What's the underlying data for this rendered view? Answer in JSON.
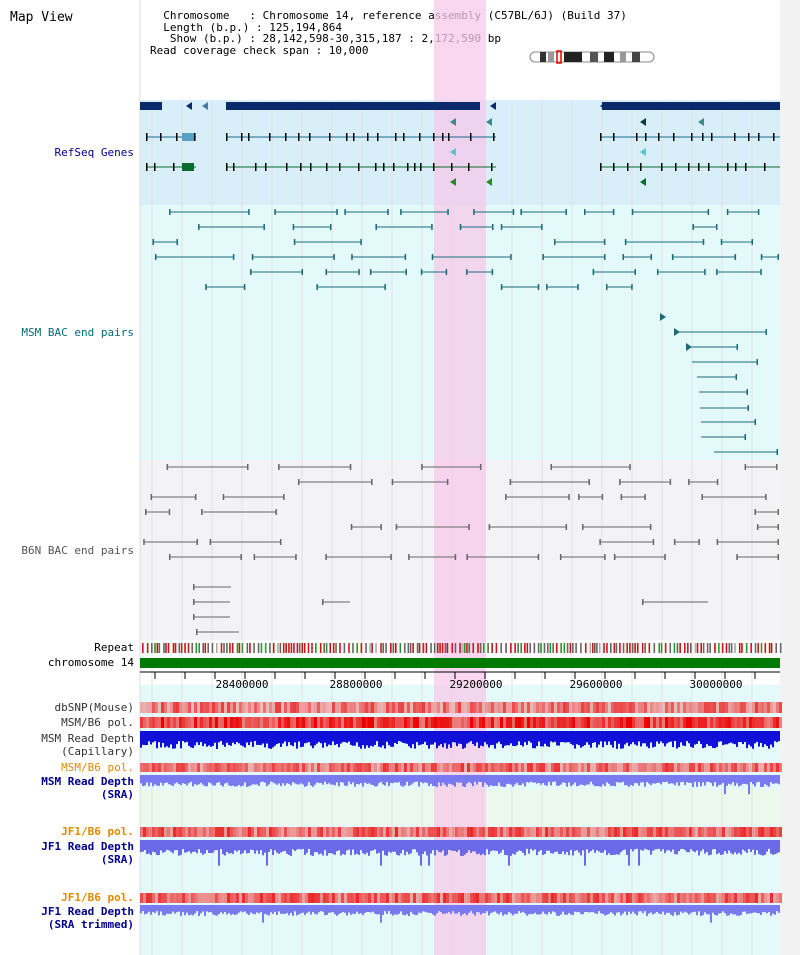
{
  "title": "Map View",
  "header": {
    "line1": "  Chromosome   : Chromosome 14, reference assembly (C57BL/6J) (Build 37)",
    "line2": "  Length (b.p.) : 125,194,864",
    "line3": "   Show (b.p.) : 28,142,598-30,315,187 : 2,172,590 bp",
    "line4": "Read coverage check span : 10,000"
  },
  "tracks": {
    "refseq": "RefSeq Genes",
    "msm_bac": "MSM BAC end pairs",
    "b6n_bac": "B6N BAC end pairs",
    "repeat": "Repeat",
    "chromosome": "chromosome 14",
    "dbsnp": "dbSNP(Mouse)",
    "msm_b6_pol": "MSM/B6 pol.",
    "msm_depth_cap": "MSM Read Depth\n(Capillary)",
    "msm_b6_pol2": "MSM/B6 pol.",
    "msm_depth_sra": "MSM Read Depth\n(SRA)",
    "jf1_b6_pol": "JF1/B6 pol.",
    "jf1_depth_sra": "JF1 Read Depth\n(SRA)",
    "jf1_b6_pol2": "JF1/B6 pol.",
    "jf1_depth_trim": "JF1 Read Depth\n(SRA trimmed)"
  },
  "axis": {
    "ticks": [
      "28400000",
      "28800000",
      "29200000",
      "29600000",
      "30000000"
    ]
  },
  "colors": {
    "refseq_label": "#00008b",
    "msm_label": "#006b7a",
    "b6n_label": "#555555",
    "pol_label": "#e08a00",
    "depth_label": "#00008b",
    "highlight": "#f7d4ee",
    "refseq_bg": "#d8eff9",
    "msm_bg": "#e4f9fa",
    "b6n_bg": "#f3f3f5"
  }
}
